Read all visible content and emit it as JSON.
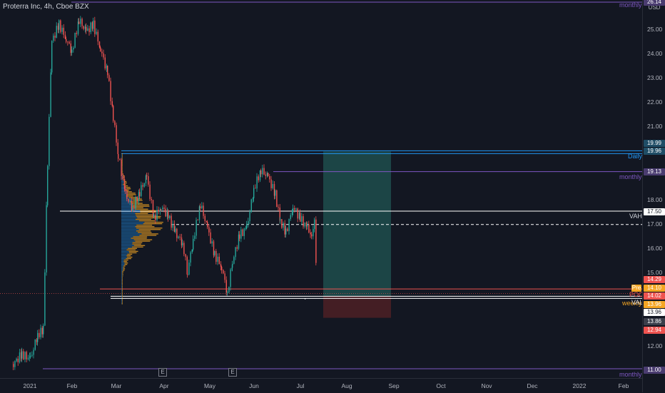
{
  "symbol_title": "Proterra Inc, 4h, Cboe BZX",
  "currency": "USD",
  "price_ticks": [
    "25.00",
    "24.00",
    "23.00",
    "22.00",
    "21.00",
    "18.00",
    "17.00",
    "16.00",
    "15.00",
    "12.00"
  ],
  "time_ticks": [
    "2021",
    "Feb",
    "Mar",
    "Apr",
    "May",
    "Jun",
    "Jul",
    "Aug",
    "Sep",
    "Oct",
    "Nov",
    "Dec",
    "2022",
    "Feb"
  ],
  "price_tags": {
    "top": "26.14",
    "daily_a": "19.99",
    "daily_b": "19.96",
    "monthly_mid": "19.13",
    "vah": "17.50",
    "a": "14.29",
    "b": "14.10",
    "c": "14.02",
    "d": "13.96",
    "e": "13.96",
    "f": "13.86",
    "g": "12.94",
    "bottom": "11.00"
  },
  "line_labels": {
    "monthly_top": "monthly",
    "daily": "Daily",
    "monthly_mid": "monthly",
    "vah": "VAH",
    "pre": "Pre",
    "poc": "POC",
    "weekly": "weekly",
    "val": "VAL",
    "monthly_bottom": "monthly"
  },
  "earnings_marker": "E",
  "colors": {
    "background": "#131722",
    "up": "#26a69a",
    "down": "#ef5350",
    "monthly": "#7e57c2",
    "daily": "#2196f3",
    "volume_profile_up": "#2196f3",
    "volume_profile_down": "#f5a623",
    "target_zone": "#1e4a4a",
    "stop_zone": "#4a1f25"
  }
}
